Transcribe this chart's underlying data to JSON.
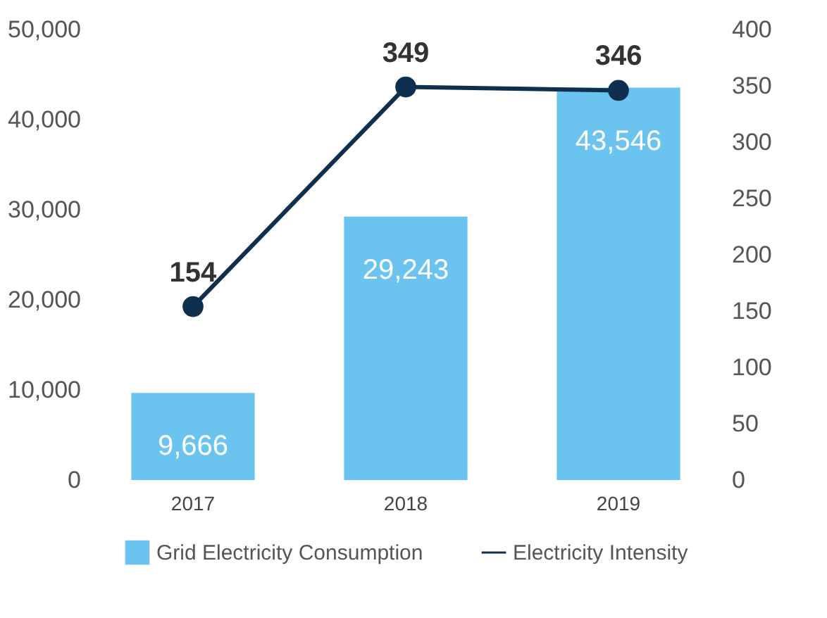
{
  "chart_data": {
    "type": "bar",
    "categories": [
      "2017",
      "2018",
      "2019"
    ],
    "series": [
      {
        "name": "Grid Electricity Consumption",
        "color": "#6ac4ef",
        "values": [
          9666,
          29243,
          43546
        ],
        "value_labels": [
          "9,666",
          "29,243",
          "43,546"
        ]
      },
      {
        "name": "Electricity Intensity",
        "type": "line",
        "axis": "y2",
        "color": "#0f2f4f",
        "values": [
          154,
          349,
          346
        ],
        "value_labels": [
          "154",
          "349",
          "346"
        ]
      }
    ],
    "ylim": [
      0,
      50000
    ],
    "yticks": [
      {
        "value": 0,
        "label": "0"
      },
      {
        "value": 10000,
        "label": "10,000"
      },
      {
        "value": 20000,
        "label": "20,000"
      },
      {
        "value": 30000,
        "label": "30,000"
      },
      {
        "value": 40000,
        "label": "40,000"
      },
      {
        "value": 50000,
        "label": "50,000"
      }
    ],
    "y2lim": [
      0,
      400
    ],
    "y2ticks": [
      0,
      50,
      100,
      150,
      200,
      250,
      300,
      350,
      400
    ],
    "legend": "bottom",
    "marker": "circle",
    "grid": false
  }
}
